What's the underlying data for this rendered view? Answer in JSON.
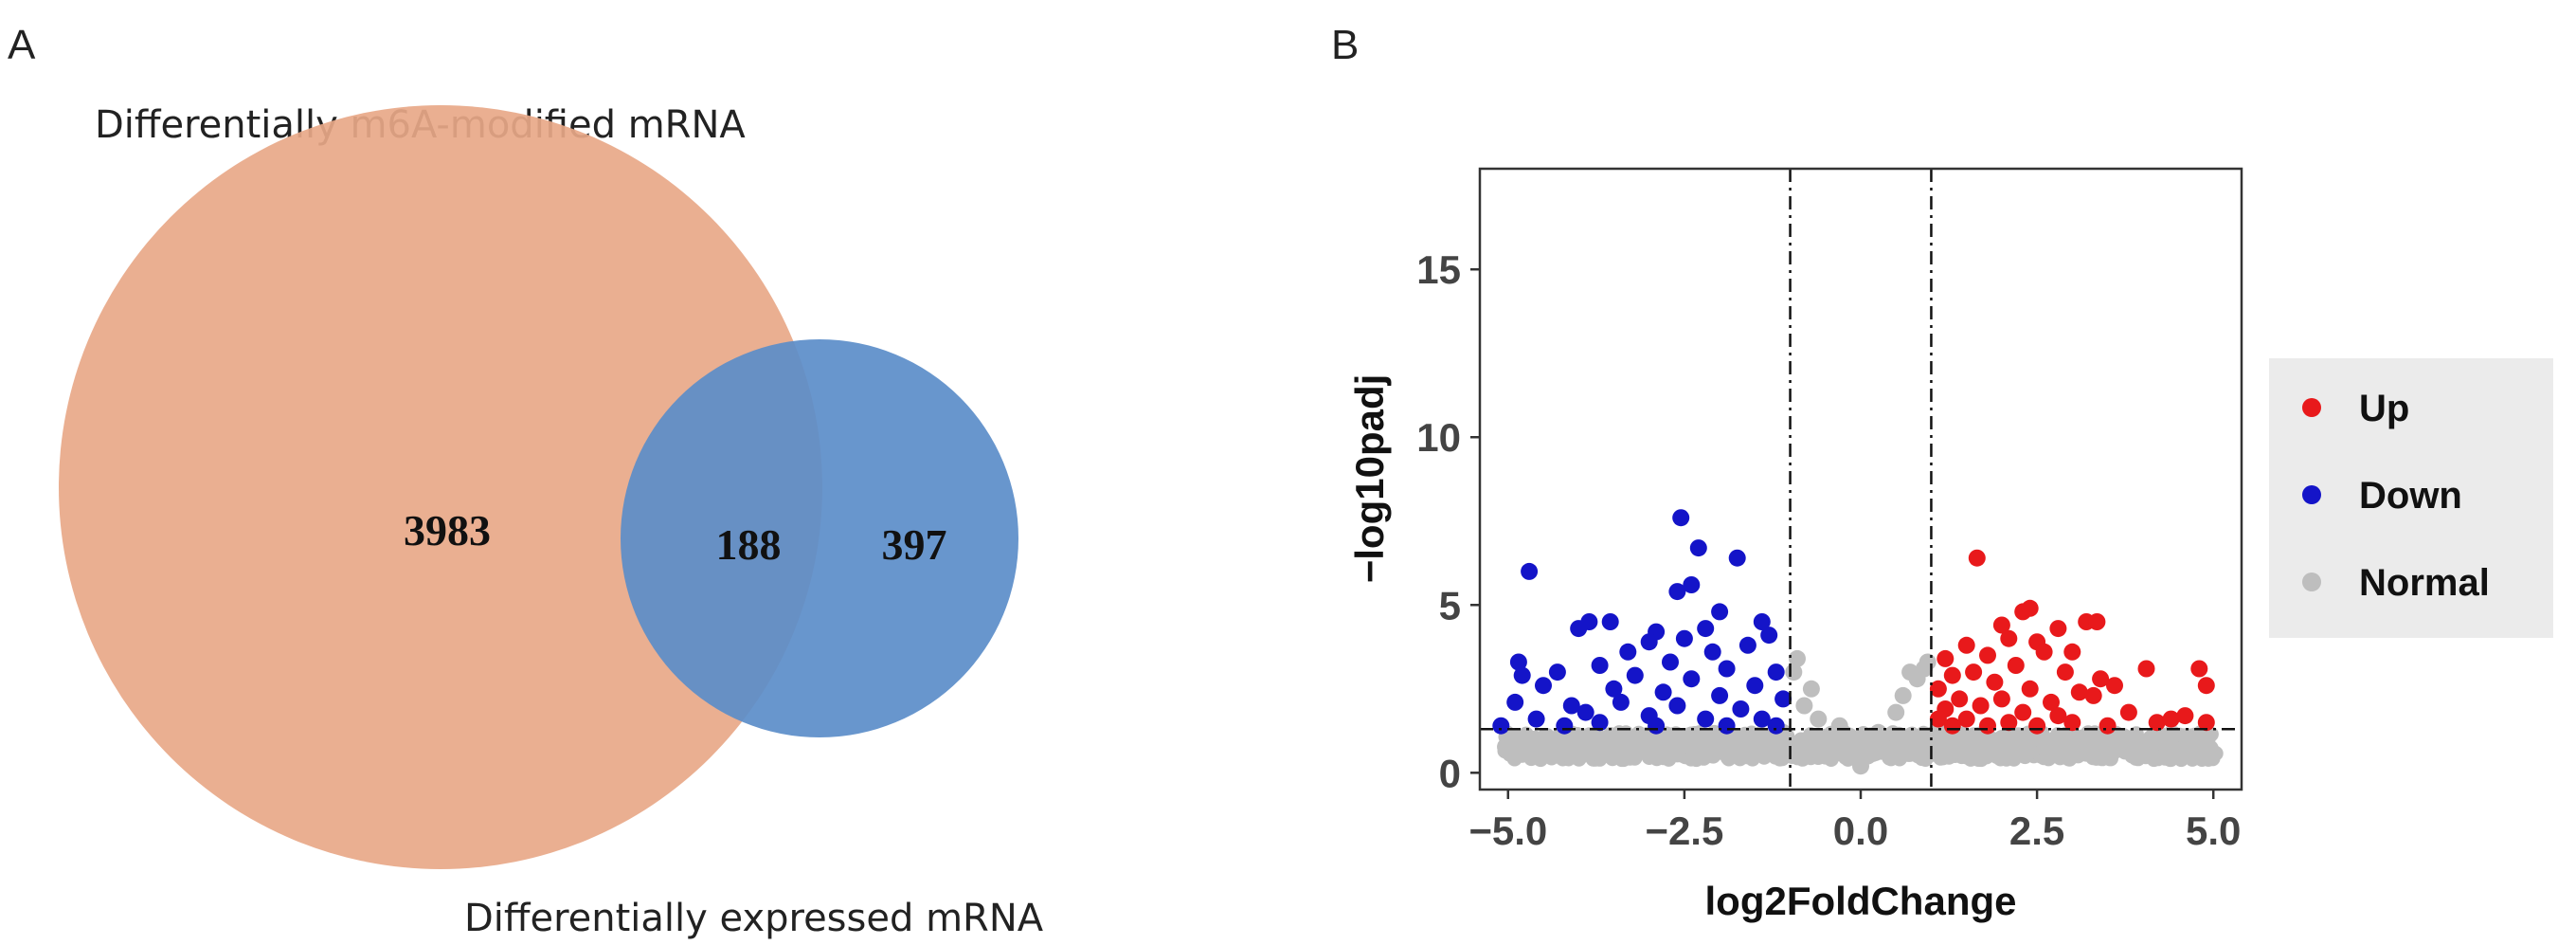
{
  "venn": {
    "panel_label": "A",
    "set_a": {
      "label": "Differentially m6A-modified mRNA",
      "count_only": 3983,
      "color": "#e8a888"
    },
    "set_b": {
      "label": "Differentially expressed mRNA",
      "count_only": 397,
      "color": "#5b8dc9"
    },
    "intersection": 188
  },
  "chart_data": {
    "type": "scatter",
    "panel_label": "B",
    "title": "",
    "xlabel": "log2FoldChange",
    "ylabel": "-log10padj",
    "xlim": [
      -5.4,
      5.4
    ],
    "ylim": [
      -0.5,
      18
    ],
    "x_ticks": [
      -5.0,
      -2.5,
      0.0,
      2.5,
      5.0
    ],
    "x_tick_labels": [
      "-5.0",
      "-2.5",
      "0.0",
      "2.5",
      "5.0"
    ],
    "y_ticks": [
      0,
      5,
      10,
      15
    ],
    "y_tick_labels": [
      "0",
      "5",
      "10",
      "15"
    ],
    "thresholds": {
      "log2fc": [
        -1,
        1
      ],
      "neg_log10_padj": 1.3
    },
    "legend": {
      "position": "right",
      "entries": [
        {
          "name": "Up",
          "color": "#e8191b"
        },
        {
          "name": "Down",
          "color": "#1414c8"
        },
        {
          "name": "Normal",
          "color": "#bebebe"
        }
      ]
    },
    "series": [
      {
        "name": "Up",
        "color": "#e8191b",
        "points": [
          [
            1.65,
            6.4
          ],
          [
            2.3,
            4.8
          ],
          [
            2.4,
            4.9
          ],
          [
            3.2,
            4.5
          ],
          [
            3.35,
            4.5
          ],
          [
            2.0,
            4.4
          ],
          [
            2.8,
            4.3
          ],
          [
            2.1,
            4.0
          ],
          [
            1.2,
            3.4
          ],
          [
            1.5,
            3.8
          ],
          [
            2.5,
            3.9
          ],
          [
            1.8,
            3.5
          ],
          [
            2.6,
            3.6
          ],
          [
            3.0,
            3.6
          ],
          [
            4.05,
            3.1
          ],
          [
            4.8,
            3.1
          ],
          [
            4.9,
            2.6
          ],
          [
            1.3,
            2.9
          ],
          [
            1.6,
            3.0
          ],
          [
            2.2,
            3.2
          ],
          [
            2.9,
            3.0
          ],
          [
            3.4,
            2.8
          ],
          [
            3.6,
            2.6
          ],
          [
            1.1,
            2.5
          ],
          [
            1.9,
            2.7
          ],
          [
            2.4,
            2.5
          ],
          [
            3.1,
            2.4
          ],
          [
            1.4,
            2.2
          ],
          [
            2.0,
            2.2
          ],
          [
            2.7,
            2.1
          ],
          [
            3.3,
            2.3
          ],
          [
            1.2,
            1.9
          ],
          [
            1.7,
            2.0
          ],
          [
            2.3,
            1.8
          ],
          [
            2.8,
            1.7
          ],
          [
            3.8,
            1.8
          ],
          [
            4.6,
            1.7
          ],
          [
            1.1,
            1.6
          ],
          [
            1.5,
            1.6
          ],
          [
            2.1,
            1.5
          ],
          [
            3.0,
            1.5
          ],
          [
            4.2,
            1.5
          ],
          [
            4.9,
            1.5
          ],
          [
            1.3,
            1.4
          ],
          [
            1.8,
            1.4
          ],
          [
            2.5,
            1.4
          ],
          [
            3.5,
            1.4
          ],
          [
            4.4,
            1.6
          ]
        ]
      },
      {
        "name": "Down",
        "color": "#1414c8",
        "points": [
          [
            -2.55,
            7.6
          ],
          [
            -2.3,
            6.7
          ],
          [
            -1.75,
            6.4
          ],
          [
            -4.7,
            6.0
          ],
          [
            -2.4,
            5.6
          ],
          [
            -2.6,
            5.4
          ],
          [
            -2.0,
            4.8
          ],
          [
            -1.4,
            4.5
          ],
          [
            -3.55,
            4.5
          ],
          [
            -3.85,
            4.5
          ],
          [
            -4.0,
            4.3
          ],
          [
            -2.2,
            4.3
          ],
          [
            -2.9,
            4.2
          ],
          [
            -1.3,
            4.1
          ],
          [
            -3.0,
            3.9
          ],
          [
            -2.5,
            4.0
          ],
          [
            -1.6,
            3.8
          ],
          [
            -3.3,
            3.6
          ],
          [
            -2.1,
            3.6
          ],
          [
            -4.85,
            3.3
          ],
          [
            -4.3,
            3.0
          ],
          [
            -3.7,
            3.2
          ],
          [
            -2.7,
            3.3
          ],
          [
            -1.9,
            3.1
          ],
          [
            -1.2,
            3.0
          ],
          [
            -4.8,
            2.9
          ],
          [
            -3.2,
            2.9
          ],
          [
            -2.4,
            2.8
          ],
          [
            -1.5,
            2.6
          ],
          [
            -4.5,
            2.6
          ],
          [
            -3.5,
            2.5
          ],
          [
            -2.8,
            2.4
          ],
          [
            -2.0,
            2.3
          ],
          [
            -1.1,
            2.2
          ],
          [
            -4.9,
            2.1
          ],
          [
            -4.1,
            2.0
          ],
          [
            -3.4,
            2.1
          ],
          [
            -2.6,
            2.0
          ],
          [
            -1.7,
            1.9
          ],
          [
            -3.9,
            1.8
          ],
          [
            -3.0,
            1.7
          ],
          [
            -2.2,
            1.6
          ],
          [
            -1.4,
            1.6
          ],
          [
            -4.6,
            1.6
          ],
          [
            -5.1,
            1.4
          ],
          [
            -3.7,
            1.5
          ],
          [
            -2.9,
            1.4
          ],
          [
            -1.9,
            1.4
          ],
          [
            -1.2,
            1.4
          ],
          [
            -4.2,
            1.4
          ]
        ]
      },
      {
        "name": "Normal",
        "color": "#bebebe",
        "points": [
          [
            -0.9,
            3.4
          ],
          [
            -0.95,
            3.0
          ],
          [
            -0.7,
            2.5
          ],
          [
            -0.8,
            2.0
          ],
          [
            -0.6,
            1.6
          ],
          [
            -0.3,
            1.4
          ],
          [
            -0.2,
            1.1
          ],
          [
            0.0,
            0.2
          ],
          [
            0.1,
            0.5
          ],
          [
            0.25,
            1.2
          ],
          [
            0.5,
            1.8
          ],
          [
            0.6,
            2.3
          ],
          [
            0.8,
            2.8
          ],
          [
            0.9,
            3.1
          ],
          [
            0.95,
            3.3
          ],
          [
            0.7,
            3.0
          ],
          [
            -0.5,
            0.6
          ],
          [
            0.4,
            0.7
          ],
          [
            -4.2,
            0.7
          ],
          [
            -3.5,
            0.9
          ],
          [
            -2.9,
            1.1
          ],
          [
            -2.2,
            0.9
          ],
          [
            -1.6,
            1.1
          ],
          [
            -1.1,
            1.2
          ],
          [
            1.1,
            1.2
          ],
          [
            1.6,
            1.1
          ],
          [
            2.3,
            1.0
          ],
          [
            3.0,
            1.1
          ],
          [
            3.7,
            0.9
          ],
          [
            4.4,
            0.8
          ]
        ]
      }
    ]
  }
}
